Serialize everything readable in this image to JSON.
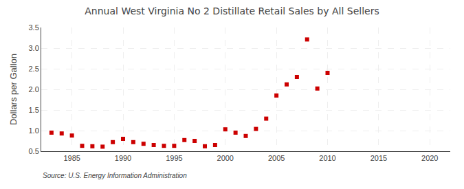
{
  "chart_data": {
    "type": "scatter",
    "title": "Annual West Virginia No 2 Distillate Retail Sales by All Sellers",
    "ylabel": "Dollars per Gallon",
    "annotations": [
      "Source: U.S. Energy Information Administration"
    ],
    "x": [
      1983,
      1984,
      1985,
      1986,
      1987,
      1988,
      1989,
      1990,
      1991,
      1992,
      1993,
      1994,
      1995,
      1996,
      1997,
      1998,
      1999,
      2000,
      2001,
      2002,
      2003,
      2004,
      2005,
      2006,
      2007,
      2008,
      2009,
      2010
    ],
    "values": [
      0.95,
      0.93,
      0.88,
      0.63,
      0.62,
      0.61,
      0.72,
      0.8,
      0.72,
      0.68,
      0.65,
      0.63,
      0.63,
      0.77,
      0.75,
      0.62,
      0.65,
      1.03,
      0.95,
      0.87,
      1.04,
      1.29,
      1.85,
      2.12,
      2.3,
      3.21,
      2.02,
      2.4
    ],
    "color": "#cc0000",
    "marker": "square",
    "xlim": [
      1982,
      2022
    ],
    "xticks": [
      1985,
      1990,
      1995,
      2000,
      2005,
      2010,
      2015,
      2020
    ],
    "ylim": [
      0.5,
      3.5
    ],
    "yticks": [
      0.5,
      {
        "value": 1.0,
        "label": "1.0"
      },
      1.5,
      {
        "value": 2.0,
        "label": "2.0"
      },
      2.5,
      {
        "value": 3.0,
        "label": "3.0"
      },
      3.5
    ],
    "grid": true
  }
}
